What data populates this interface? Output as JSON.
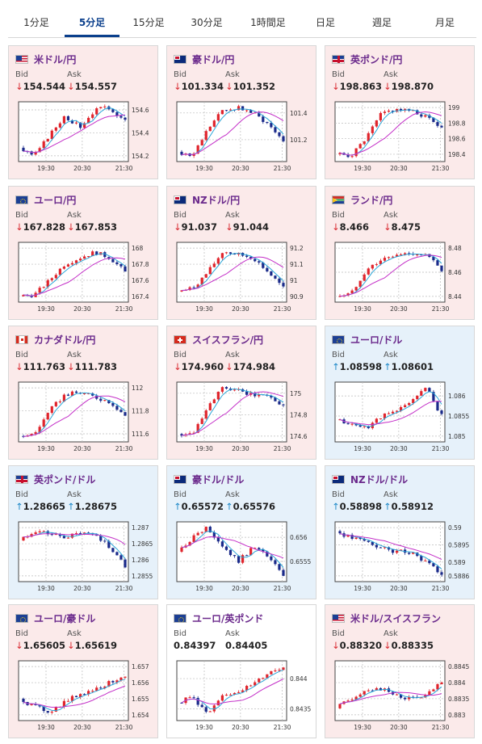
{
  "tabs": [
    "1分足",
    "5分足",
    "15分足",
    "30分足",
    "1時間足",
    "日足",
    "週足",
    "月足"
  ],
  "active_tab": 1,
  "labels": {
    "bid": "Bid",
    "ask": "Ask"
  },
  "arrows": {
    "down": "↓",
    "up": "↑"
  },
  "colors": {
    "card_down_bg": "#fbeaea",
    "card_up_bg": "#e6f1fa",
    "card_flat_bg": "#ffffff",
    "down_arrow": "#d8262e",
    "up_arrow": "#1e88c8",
    "candle_up": "#e0242c",
    "candle_down": "#1a2a8a",
    "ma_short": "#2aa6d8",
    "ma_long": "#c430c8",
    "pair_text": "#6b2a8c"
  },
  "pairs": [
    {
      "name": "米ドル/円",
      "flag": "us-flag-icon",
      "direction": "down",
      "bid": "154.544",
      "ask": "154.557",
      "chart": {
        "y_ticks": [
          "154.6",
          "154.4",
          "154.2"
        ],
        "x_ticks": [
          "19:30",
          "20:30",
          "21:30"
        ],
        "trend": [
          154.27,
          154.2,
          154.38,
          154.55,
          154.45,
          154.6,
          154.62,
          154.5
        ]
      }
    },
    {
      "name": "豪ドル/円",
      "flag": "au-flag-icon",
      "direction": "down",
      "bid": "101.334",
      "ask": "101.352",
      "chart": {
        "y_ticks": [
          "101.4",
          "101.2"
        ],
        "x_ticks": [
          "19:30",
          "20:30",
          "21:30"
        ],
        "trend": [
          101.11,
          101.08,
          101.28,
          101.42,
          101.44,
          101.4,
          101.32,
          101.2
        ]
      }
    },
    {
      "name": "英ポンド/円",
      "flag": "gb-flag-icon",
      "direction": "down",
      "bid": "198.863",
      "ask": "198.870",
      "chart": {
        "y_ticks": [
          "199",
          "198.8",
          "198.6",
          "198.4"
        ],
        "x_ticks": [
          "19:30",
          "20:30",
          "21:30"
        ],
        "trend": [
          198.4,
          198.38,
          198.6,
          198.92,
          198.98,
          198.95,
          198.88,
          198.75
        ]
      }
    },
    {
      "name": "ユーロ/円",
      "flag": "eu-flag-icon",
      "direction": "down",
      "bid": "167.828",
      "ask": "167.853",
      "chart": {
        "y_ticks": [
          "168",
          "167.8",
          "167.6",
          "167.4"
        ],
        "x_ticks": [
          "19:30",
          "20:30",
          "21:30"
        ],
        "trend": [
          167.4,
          167.42,
          167.6,
          167.8,
          167.88,
          167.95,
          167.88,
          167.7
        ]
      }
    },
    {
      "name": "NZドル/円",
      "flag": "nz-flag-icon",
      "direction": "down",
      "bid": "91.037",
      "ask": "91.044",
      "chart": {
        "y_ticks": [
          "91.2",
          "91.1",
          "91",
          "90.9"
        ],
        "x_ticks": [
          "19:30",
          "20:30",
          "21:30"
        ],
        "trend": [
          90.93,
          90.95,
          91.05,
          91.18,
          91.16,
          91.14,
          91.05,
          90.95
        ]
      }
    },
    {
      "name": "ランド/円",
      "flag": "za-flag-icon",
      "direction": "down",
      "bid": "8.466",
      "ask": "8.475",
      "chart": {
        "y_ticks": [
          "8.48",
          "8.46",
          "8.44"
        ],
        "x_ticks": [
          "19:30",
          "20:30",
          "21:30"
        ],
        "trend": [
          8.44,
          8.442,
          8.462,
          8.47,
          8.474,
          8.476,
          8.474,
          8.462
        ]
      }
    },
    {
      "name": "カナダドル/円",
      "flag": "ca-flag-icon",
      "direction": "down",
      "bid": "111.763",
      "ask": "111.783",
      "chart": {
        "y_ticks": [
          "112",
          "111.8",
          "111.6"
        ],
        "x_ticks": [
          "19:30",
          "20:30",
          "21:30"
        ],
        "trend": [
          111.58,
          111.6,
          111.8,
          111.94,
          111.96,
          111.92,
          111.88,
          111.76
        ]
      }
    },
    {
      "name": "スイスフラン/円",
      "flag": "ch-flag-icon",
      "direction": "down",
      "bid": "174.960",
      "ask": "174.984",
      "chart": {
        "y_ticks": [
          "175",
          "174.8",
          "174.6"
        ],
        "x_ticks": [
          "19:30",
          "20:30",
          "21:30"
        ],
        "trend": [
          174.62,
          174.63,
          174.88,
          175.05,
          175.02,
          174.98,
          174.98,
          174.88
        ]
      }
    },
    {
      "name": "ユーロ/ドル",
      "flag": "eu-us-flag-icon",
      "direction": "up",
      "bid": "1.08598",
      "ask": "1.08601",
      "chart": {
        "y_ticks": [
          "1.086",
          "1.0855",
          "1.085"
        ],
        "x_ticks": [
          "19:30",
          "20:30",
          "21:30"
        ],
        "trend": [
          1.0854,
          1.0853,
          1.0852,
          1.0855,
          1.0856,
          1.0859,
          1.0862,
          1.0855
        ]
      }
    },
    {
      "name": "英ポンド/ドル",
      "flag": "gb-us-flag-icon",
      "direction": "up",
      "bid": "1.28665",
      "ask": "1.28675",
      "chart": {
        "y_ticks": [
          "1.287",
          "1.2865",
          "1.286",
          "1.2855"
        ],
        "x_ticks": [
          "19:30",
          "20:30",
          "21:30"
        ],
        "trend": [
          1.2866,
          1.2869,
          1.2868,
          1.2867,
          1.2868,
          1.2868,
          1.2864,
          1.2858
        ]
      }
    },
    {
      "name": "豪ドル/ドル",
      "flag": "au-us-flag-icon",
      "direction": "up",
      "bid": "0.65572",
      "ask": "0.65576",
      "chart": {
        "y_ticks": [
          "0.656",
          "0.6555"
        ],
        "x_ticks": [
          "19:30",
          "20:30",
          "21:30"
        ],
        "trend": [
          0.6557,
          0.656,
          0.6562,
          0.6558,
          0.6555,
          0.6558,
          0.6556,
          0.6552
        ]
      }
    },
    {
      "name": "NZドル/ドル",
      "flag": "nz-us-flag-icon",
      "direction": "up",
      "bid": "0.58898",
      "ask": "0.58912",
      "chart": {
        "y_ticks": [
          "0.59",
          "0.5895",
          "0.589",
          "0.5886"
        ],
        "x_ticks": [
          "19:30",
          "20:30",
          "21:30"
        ],
        "trend": [
          0.5899,
          0.5897,
          0.5896,
          0.5894,
          0.5893,
          0.5893,
          0.589,
          0.5886
        ]
      }
    },
    {
      "name": "ユーロ/豪ドル",
      "flag": "eu-au-flag-icon",
      "direction": "down",
      "bid": "1.65605",
      "ask": "1.65619",
      "chart": {
        "y_ticks": [
          "1.657",
          "1.656",
          "1.655",
          "1.654"
        ],
        "x_ticks": [
          "19:30",
          "20:30",
          "21:30"
        ],
        "trend": [
          1.655,
          1.6545,
          1.6542,
          1.6548,
          1.6553,
          1.6556,
          1.656,
          1.6565
        ]
      }
    },
    {
      "name": "ユーロ/英ポンド",
      "flag": "eu-gb-flag-icon",
      "direction": "none",
      "bid": "0.84397",
      "ask": "0.84405",
      "chart": {
        "y_ticks": [
          "0.844",
          "0.8435"
        ],
        "x_ticks": [
          "19:30",
          "20:30",
          "21:30"
        ],
        "trend": [
          0.8436,
          0.8437,
          0.8434,
          0.8437,
          0.8438,
          0.8439,
          0.8441,
          0.8442
        ]
      }
    },
    {
      "name": "米ドル/スイスフラン",
      "flag": "us-ch-flag-icon",
      "direction": "down",
      "bid": "0.88320",
      "ask": "0.88335",
      "chart": {
        "y_ticks": [
          "0.8845",
          "0.884",
          "0.8835",
          "0.883"
        ],
        "x_ticks": [
          "19:30",
          "20:30",
          "21:30"
        ],
        "trend": [
          0.8832,
          0.8835,
          0.8838,
          0.8838,
          0.8836,
          0.8835,
          0.8836,
          0.884
        ]
      }
    }
  ]
}
